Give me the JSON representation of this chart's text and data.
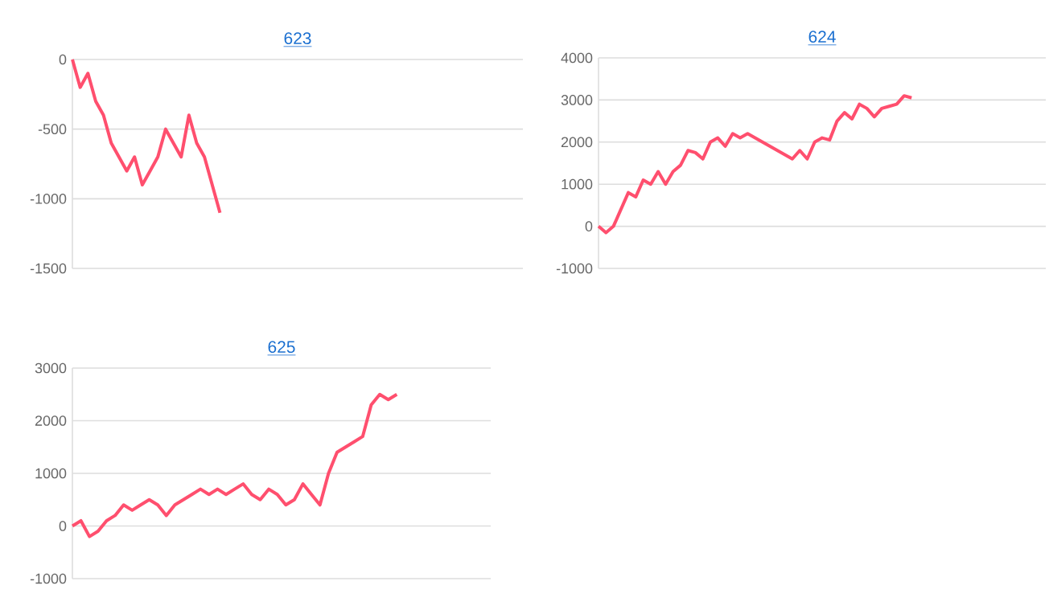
{
  "chart_data": [
    {
      "type": "line",
      "title": "623",
      "categories": [
        null,
        null,
        null,
        null,
        null,
        null,
        null,
        null,
        null,
        null,
        null,
        null,
        null,
        null,
        null,
        null,
        null,
        null,
        null,
        null,
        null,
        null,
        null,
        null,
        null,
        null,
        null,
        null,
        null,
        null,
        null,
        null,
        null,
        null,
        null,
        null,
        null,
        null,
        null,
        null,
        null,
        null,
        null,
        null,
        null,
        null,
        null,
        null,
        null,
        null,
        null,
        null,
        null,
        null,
        null,
        null,
        null,
        null,
        null
      ],
      "series": [
        {
          "color": "#ff4f6e",
          "values": [
            0,
            -200,
            -100,
            -300,
            -400,
            -600,
            -700,
            -800,
            -700,
            -900,
            -800,
            -700,
            -500,
            -600,
            -700,
            -400,
            -600,
            -700,
            -900,
            -1100,
            null,
            null,
            null,
            null,
            null,
            null,
            null,
            null,
            null,
            null,
            null,
            null,
            null,
            null,
            null,
            null,
            null,
            null,
            null,
            null,
            null,
            null,
            null,
            null,
            null,
            null,
            null,
            null,
            null,
            null,
            null,
            null,
            null,
            null,
            null,
            null,
            null,
            null,
            null
          ]
        }
      ],
      "ylim": [
        -1500,
        0
      ],
      "yticks": [
        -1500,
        -1000,
        -500,
        0
      ],
      "grid": "y",
      "tick_labels": "y",
      "marker": "none",
      "line_style": "solid"
    },
    {
      "type": "line",
      "title": "624",
      "categories": [
        null,
        null,
        null,
        null,
        null,
        null,
        null,
        null,
        null,
        null,
        null,
        null,
        null,
        null,
        null,
        null,
        null,
        null,
        null,
        null,
        null,
        null,
        null,
        null,
        null,
        null,
        null,
        null,
        null,
        null,
        null,
        null,
        null,
        null,
        null,
        null,
        null,
        null,
        null,
        null,
        null,
        null,
        null,
        null,
        null,
        null,
        null,
        null,
        null,
        null,
        null,
        null,
        null,
        null,
        null,
        null,
        null,
        null,
        null,
        null,
        null
      ],
      "series": [
        {
          "color": "#ff4f6e",
          "values": [
            0,
            -150,
            0,
            400,
            800,
            700,
            1100,
            1000,
            1300,
            1000,
            1300,
            1450,
            1800,
            1750,
            1600,
            2000,
            2100,
            1900,
            2200,
            2100,
            2200,
            2100,
            2000,
            1900,
            1800,
            1700,
            1600,
            1800,
            1600,
            2000,
            2100,
            2050,
            2500,
            2700,
            2550,
            2900,
            2800,
            2600,
            2800,
            2850,
            2900,
            3100,
            3050,
            null,
            null,
            null,
            null,
            null,
            null,
            null,
            null,
            null,
            null,
            null,
            null,
            null,
            null,
            null,
            null,
            null,
            null
          ]
        }
      ],
      "ylim": [
        -1000,
        4000
      ],
      "yticks": [
        -1000,
        0,
        1000,
        2000,
        3000,
        4000
      ],
      "grid": "y",
      "tick_labels": "y",
      "marker": "none",
      "line_style": "solid"
    },
    {
      "type": "line",
      "title": "625",
      "categories": [
        null,
        null,
        null,
        null,
        null,
        null,
        null,
        null,
        null,
        null,
        null,
        null,
        null,
        null,
        null,
        null,
        null,
        null,
        null,
        null,
        null,
        null,
        null,
        null,
        null,
        null,
        null,
        null,
        null,
        null,
        null,
        null,
        null,
        null,
        null,
        null,
        null,
        null,
        null,
        null,
        null,
        null,
        null,
        null,
        null,
        null,
        null,
        null,
        null,
        null
      ],
      "series": [
        {
          "color": "#ff4f6e",
          "values": [
            0,
            100,
            -200,
            -100,
            100,
            200,
            400,
            300,
            400,
            500,
            400,
            200,
            400,
            500,
            600,
            700,
            600,
            700,
            600,
            700,
            800,
            600,
            500,
            700,
            600,
            400,
            500,
            800,
            600,
            400,
            1000,
            1400,
            1500,
            1600,
            1700,
            2300,
            2500,
            2400,
            2500,
            null,
            null,
            null,
            null,
            null,
            null,
            null,
            null,
            null,
            null,
            null
          ]
        }
      ],
      "ylim": [
        -1000,
        3000
      ],
      "yticks": [
        -1000,
        0,
        1000,
        2000,
        3000
      ],
      "grid": "y",
      "tick_labels": "y",
      "marker": "none",
      "line_style": "solid"
    }
  ]
}
